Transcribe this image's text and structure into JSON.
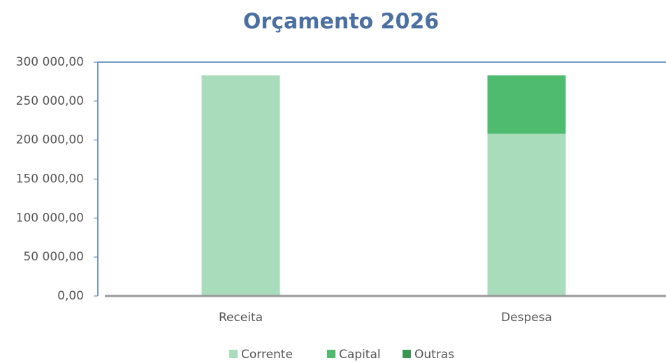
{
  "chart_data": {
    "type": "stacked_bar",
    "title": "Orçamento 2026",
    "categories": [
      "Receita",
      "Despesa"
    ],
    "series": [
      {
        "name": "Corrente",
        "color": "#a9dcbb",
        "values": [
          283000,
          208000
        ]
      },
      {
        "name": "Capital",
        "color": "#4fbb6e",
        "values": [
          0,
          75000
        ]
      },
      {
        "name": "Outras",
        "color": "#3a9655",
        "values": [
          0,
          0
        ]
      }
    ],
    "ylim": [
      0,
      300000
    ],
    "yticks": [
      {
        "value": 0,
        "label": "0,00"
      },
      {
        "value": 50000,
        "label": "50 000,00"
      },
      {
        "value": 100000,
        "label": "100 000,00"
      },
      {
        "value": 150000,
        "label": "150 000,00"
      },
      {
        "value": 200000,
        "label": "200 000,00"
      },
      {
        "value": 250000,
        "label": "250 000,00"
      },
      {
        "value": 300000,
        "label": "300 000,00"
      }
    ],
    "legend": "bottom"
  }
}
